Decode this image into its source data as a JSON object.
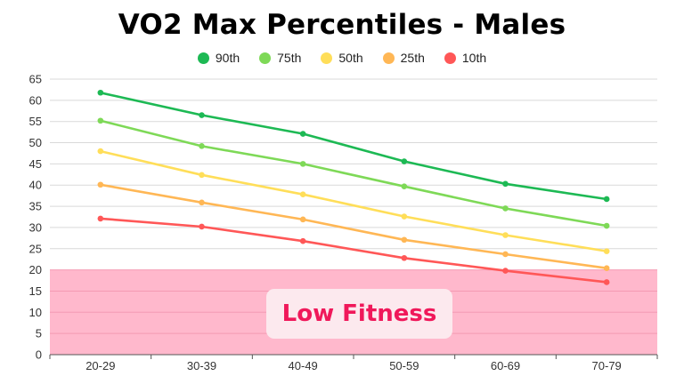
{
  "chart_data": {
    "type": "line",
    "title": "VO2 Max Percentiles - Males",
    "xlabel": "",
    "ylabel": "",
    "categories": [
      "20-29",
      "30-39",
      "40-49",
      "50-59",
      "60-69",
      "70-79"
    ],
    "ylim": [
      0,
      65
    ],
    "yticks": [
      0,
      5,
      10,
      15,
      20,
      25,
      30,
      35,
      40,
      45,
      50,
      55,
      60,
      65
    ],
    "grid": true,
    "legend_position": "top-center",
    "series": [
      {
        "name": "90th",
        "color": "#1db954",
        "values": [
          61.8,
          56.5,
          52.1,
          45.6,
          40.3,
          36.7
        ]
      },
      {
        "name": "75th",
        "color": "#7ed957",
        "values": [
          55.2,
          49.2,
          45.0,
          39.7,
          34.5,
          30.4
        ]
      },
      {
        "name": "50th",
        "color": "#ffde59",
        "values": [
          48.0,
          42.4,
          37.8,
          32.6,
          28.2,
          24.4
        ]
      },
      {
        "name": "25th",
        "color": "#ffb755",
        "values": [
          40.1,
          35.9,
          31.9,
          27.1,
          23.7,
          20.4
        ]
      },
      {
        "name": "10th",
        "color": "#ff5757",
        "values": [
          32.1,
          30.2,
          26.8,
          22.8,
          19.8,
          17.1
        ]
      }
    ],
    "annotations": [
      {
        "text": "Low Fitness",
        "region_y_range": [
          0,
          20
        ],
        "region_color": "#ffb8cc",
        "text_color": "#f0185a"
      }
    ]
  }
}
